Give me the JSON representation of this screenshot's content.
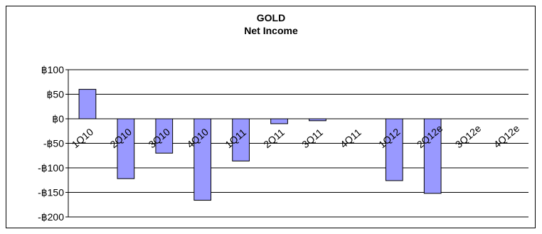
{
  "chart_data": {
    "type": "bar",
    "title": "GOLD",
    "subtitle": "Net Income",
    "xlabel": "",
    "ylabel": "",
    "categories": [
      "1Q10",
      "2Q10",
      "3Q10",
      "4Q10",
      "1Q11",
      "2Q11",
      "3Q11",
      "4Q11",
      "1Q12",
      "2Q12e",
      "3Q12e",
      "4Q12e"
    ],
    "values": [
      60,
      -122,
      -70,
      -166,
      -86,
      -10,
      -4,
      null,
      -126,
      -152,
      null,
      null
    ],
    "ylim": [
      -200,
      100
    ],
    "ytick_values": [
      100,
      50,
      0,
      -50,
      -100,
      -150,
      -200
    ],
    "ytick_labels": [
      "฿100",
      "฿50",
      "฿0",
      "-฿50",
      "-฿100",
      "-฿150",
      "-฿200"
    ],
    "grid": true,
    "legend": "none",
    "colors": {
      "bar_fill": "#9999ff",
      "bar_stroke": "#000000",
      "grid": "#000000"
    }
  }
}
